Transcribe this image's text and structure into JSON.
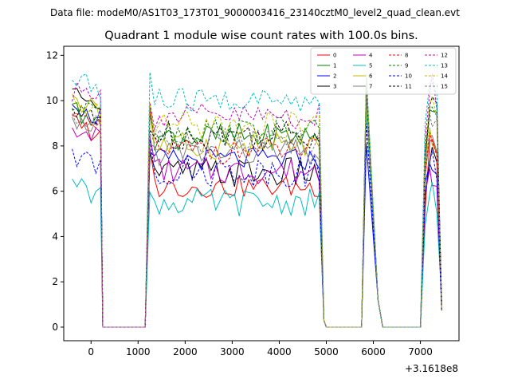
{
  "chart_data": {
    "type": "line",
    "suptitle": "Data file: modeM0/AS1T03_173T01_9000003416_23140cztM0_level2_quad_clean.evt",
    "title": "Quadrant 1 module wise count rates with 100.0s bins.",
    "xlabel": "",
    "ylabel": "",
    "x_offset_label": "+3.1618e8",
    "xlim": [
      -580,
      7820
    ],
    "ylim": [
      -0.6,
      12.4
    ],
    "x_ticks": [
      0,
      1000,
      2000,
      3000,
      4000,
      5000,
      6000,
      7000
    ],
    "y_ticks": [
      0,
      2,
      4,
      6,
      8,
      10,
      12
    ],
    "legend_position": "top-right",
    "colors": [
      "#ff0000",
      "#008000",
      "#0000ff",
      "#000000",
      "#bf00bf",
      "#00bfbf",
      "#bfbf00",
      "#808080"
    ],
    "series": [
      {
        "name": "0",
        "base": 6.2,
        "amp": 0.25,
        "seg1": 9.0,
        "peak": 10.6,
        "last": 8.2,
        "style": "solid"
      },
      {
        "name": "1",
        "base": 8.4,
        "amp": 0.3,
        "seg1": 9.5,
        "peak": 11.0,
        "last": 9.6,
        "style": "solid"
      },
      {
        "name": "2",
        "base": 7.4,
        "amp": 0.25,
        "seg1": 9.8,
        "peak": 8.1,
        "last": 7.2,
        "style": "solid"
      },
      {
        "name": "3",
        "base": 6.8,
        "amp": 0.35,
        "seg1": 10.5,
        "peak": 10.2,
        "last": 7.3,
        "style": "solid"
      },
      {
        "name": "4",
        "base": 6.9,
        "amp": 0.3,
        "seg1": 8.8,
        "peak": 10.4,
        "last": 7.0,
        "style": "solid"
      },
      {
        "name": "5",
        "base": 5.5,
        "amp": 0.3,
        "seg1": 6.2,
        "peak": 9.6,
        "last": 5.9,
        "style": "solid"
      },
      {
        "name": "6",
        "base": 8.0,
        "amp": 0.3,
        "seg1": 9.9,
        "peak": 10.0,
        "last": 8.8,
        "style": "solid"
      },
      {
        "name": "7",
        "base": 7.7,
        "amp": 0.3,
        "seg1": 9.3,
        "peak": 10.3,
        "last": 8.4,
        "style": "solid"
      },
      {
        "name": "8",
        "base": 7.8,
        "amp": 0.3,
        "seg1": 9.4,
        "peak": 10.8,
        "last": 8.6,
        "style": "dashed"
      },
      {
        "name": "9",
        "base": 8.7,
        "amp": 0.3,
        "seg1": 9.7,
        "peak": 10.5,
        "last": 9.7,
        "style": "dashed"
      },
      {
        "name": "10",
        "base": 6.9,
        "amp": 0.35,
        "seg1": 7.6,
        "peak": 9.0,
        "last": 7.3,
        "style": "dashed"
      },
      {
        "name": "11",
        "base": 8.5,
        "amp": 0.35,
        "seg1": 9.6,
        "peak": 10.6,
        "last": 9.8,
        "style": "dashed"
      },
      {
        "name": "12",
        "base": 9.3,
        "amp": 0.3,
        "seg1": 10.4,
        "peak": 10.9,
        "last": 10.4,
        "style": "dashed"
      },
      {
        "name": "13",
        "base": 10.0,
        "amp": 0.3,
        "seg1": 10.9,
        "peak": 11.2,
        "last": 10.8,
        "style": "dashed"
      },
      {
        "name": "14",
        "base": 8.9,
        "amp": 0.3,
        "seg1": 9.9,
        "peak": 11.0,
        "last": 9.8,
        "style": "dashed"
      },
      {
        "name": "15",
        "base": 8.2,
        "amp": 0.3,
        "seg1": 9.2,
        "peak": 10.4,
        "last": 9.4,
        "style": "dashed"
      }
    ],
    "segments": [
      {
        "start": -400,
        "end": 200,
        "step": 100,
        "fall_end": 250
      },
      {
        "start": 1250,
        "end": 4850,
        "step": 100,
        "rise_start": 1150,
        "fall_end": 4950
      },
      {
        "start": 5850,
        "end": 5950,
        "step": 100,
        "rise_start": 5750,
        "fall_end": 6100
      },
      {
        "start": 7100,
        "end": 7450,
        "step": 100,
        "rise_start": 7000
      }
    ],
    "zero_gaps": [
      [
        250,
        1150
      ],
      [
        4950,
        5750
      ],
      [
        6100,
        7000
      ]
    ]
  }
}
